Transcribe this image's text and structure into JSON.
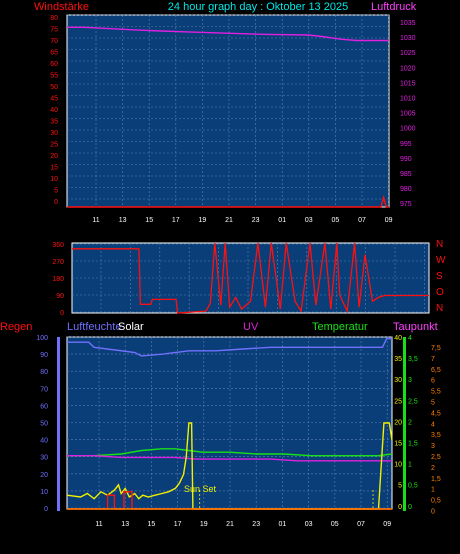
{
  "colors": {
    "background": "#000000",
    "plot_bg": "#0a3e78",
    "grid": "#5a7fae",
    "red": "#ff1010",
    "magenta": "#e020e0",
    "cyan": "#00e6e6",
    "yellow": "#f0f000",
    "green": "#18e018",
    "blue": "#7070ff",
    "white": "#ffffff",
    "orange": "#ff8000"
  },
  "chart_data": [
    {
      "type": "line",
      "title": "24 hour graph day : Oktober 13 2025",
      "ylabel_left": "Windstärke",
      "ylabel_right": "Luftdruck",
      "x_ticks": [
        "11",
        "13",
        "15",
        "17",
        "19",
        "21",
        "23",
        "01",
        "03",
        "05",
        "07",
        "09"
      ],
      "left_ticks": [
        "80",
        "75",
        "70",
        "65",
        "60",
        "55",
        "50",
        "45",
        "40",
        "35",
        "30",
        "25",
        "20",
        "15",
        "10",
        "5",
        "0"
      ],
      "right_ticks": [
        "1035",
        "1030",
        "1025",
        "1020",
        "1015",
        "1010",
        "1005",
        "1000",
        "995",
        "990",
        "985",
        "980",
        "975"
      ],
      "ylim_left": [
        0,
        80
      ],
      "ylim_right": [
        975,
        1037.5
      ],
      "series": [
        {
          "color_key": "magenta",
          "axis": "right",
          "x": [
            9,
            10.3,
            14.3,
            16,
            18,
            20.6,
            22,
            24,
            27,
            28,
            29.5,
            30.6,
            33
          ],
          "values": [
            1033.5,
            1033.5,
            1032.6,
            1032.3,
            1032.0,
            1031.6,
            1031.4,
            1031.2,
            1031.0,
            1030.5,
            1029.6,
            1029.2,
            1029.2
          ]
        },
        {
          "color_key": "red",
          "axis": "left",
          "x": [
            9,
            32.4,
            32.6,
            32.8,
            33
          ],
          "values": [
            0,
            0,
            4,
            0,
            0
          ]
        }
      ]
    },
    {
      "type": "line",
      "title": "",
      "compass_labels": [
        "N",
        "W",
        "S",
        "O",
        "N"
      ],
      "left_ticks": [
        "360",
        "270",
        "180",
        "90",
        "0"
      ],
      "ylim": [
        0,
        360
      ],
      "series": [
        {
          "color_key": "red",
          "x": [
            9,
            13.5,
            13.6,
            14.3,
            14.4,
            16,
            16.1,
            18,
            18.3,
            18.6,
            19,
            19.3,
            19.6,
            20,
            20.4,
            21,
            21.5,
            22,
            22.4,
            23,
            23.4,
            24,
            24.4,
            25,
            25.4,
            26,
            26.4,
            26.8,
            27,
            27.5,
            28,
            28.3,
            28.7,
            29.2,
            29.6,
            30,
            33
          ],
          "values": [
            330,
            330,
            45,
            45,
            70,
            70,
            0,
            10,
            50,
            360,
            40,
            360,
            30,
            80,
            20,
            60,
            360,
            30,
            360,
            20,
            360,
            60,
            10,
            360,
            40,
            360,
            20,
            360,
            90,
            10,
            360,
            30,
            300,
            60,
            80,
            90,
            90
          ]
        }
      ]
    },
    {
      "type": "line",
      "labels": {
        "rain": "Regen",
        "humidity": "Luftfeuchte",
        "solar": "Solar",
        "uv": "UV",
        "temperature": "Temperatur",
        "dewpoint": "Taupunkt"
      },
      "annotation": "Sun Set",
      "left_ticks": [
        "100",
        "90",
        "80",
        "70",
        "60",
        "50",
        "40",
        "30",
        "20",
        "10",
        "0"
      ],
      "right_ticks_1": [
        "40",
        "35",
        "30",
        "25",
        "20",
        "15",
        "10",
        "5",
        "0"
      ],
      "right_ticks_2": [
        "4",
        "3,5",
        "3",
        "2,5",
        "2",
        "1,5",
        "1",
        "0,5",
        "0"
      ],
      "right_ticks_3": [
        "7,5",
        "7",
        "6,5",
        "6",
        "5,5",
        "5",
        "4,5",
        "4",
        "3,5",
        "3",
        "2,5",
        "2",
        "1,5",
        "1",
        "0,5",
        "0"
      ],
      "x_ticks": [
        "11",
        "13",
        "15",
        "17",
        "19",
        "21",
        "23",
        "01",
        "03",
        "05",
        "07",
        "09"
      ],
      "series": [
        {
          "name": "Luftfeuchte",
          "color_key": "blue",
          "x": [
            9,
            10.6,
            11,
            14,
            14.5,
            16,
            18,
            20,
            22,
            24,
            27,
            30,
            31.5,
            32.3,
            32.6,
            33
          ],
          "values": [
            97,
            97,
            94,
            91,
            89,
            90,
            92,
            92,
            93,
            94,
            94,
            94,
            94,
            94,
            99,
            99
          ]
        },
        {
          "name": "Temperatur",
          "color_key": "green",
          "x": [
            9,
            11,
            13,
            14.5,
            16,
            17,
            18,
            19,
            21,
            23,
            25,
            27,
            29,
            31,
            32,
            33
          ],
          "values": [
            31,
            31,
            32,
            34,
            35,
            35,
            34,
            33,
            33,
            32,
            32,
            31,
            31,
            31,
            31,
            32
          ]
        },
        {
          "name": "Taupunkt",
          "color_key": "magenta",
          "x": [
            9,
            11,
            13,
            15,
            17,
            18.5,
            20,
            22,
            24,
            26,
            28,
            30,
            32,
            33
          ],
          "values": [
            31,
            31,
            30,
            30,
            30,
            29,
            29,
            29,
            29,
            28,
            28,
            28,
            28,
            28
          ]
        },
        {
          "name": "Solar",
          "color_key": "yellow",
          "x": [
            9,
            10,
            10.5,
            11,
            11.5,
            12,
            12.5,
            12.8,
            13,
            13.3,
            13.6,
            14,
            14.3,
            14.6,
            15,
            15.5,
            16,
            16.5,
            17,
            17.3,
            17.6,
            17.8,
            18,
            18.1,
            18.2,
            18.3,
            32,
            32.4,
            32.6,
            32.8,
            33
          ],
          "values": [
            8,
            7,
            9,
            6,
            10,
            8,
            11,
            14,
            9,
            12,
            7,
            9,
            6,
            8,
            7,
            8,
            9,
            10,
            12,
            15,
            20,
            30,
            50,
            50,
            50,
            0,
            0,
            50,
            50,
            50,
            40
          ]
        },
        {
          "name": "Regen",
          "color_key": "red",
          "x": [
            9,
            12,
            12,
            12.5,
            12.5,
            13.2,
            13.2,
            13.8,
            13.8,
            33
          ],
          "values": [
            0,
            0,
            8,
            8,
            0,
            0,
            10,
            10,
            0,
            0
          ]
        },
        {
          "name": "UV",
          "color_key": "orange",
          "x": [
            9,
            33
          ],
          "values": [
            0,
            0
          ]
        }
      ]
    }
  ]
}
